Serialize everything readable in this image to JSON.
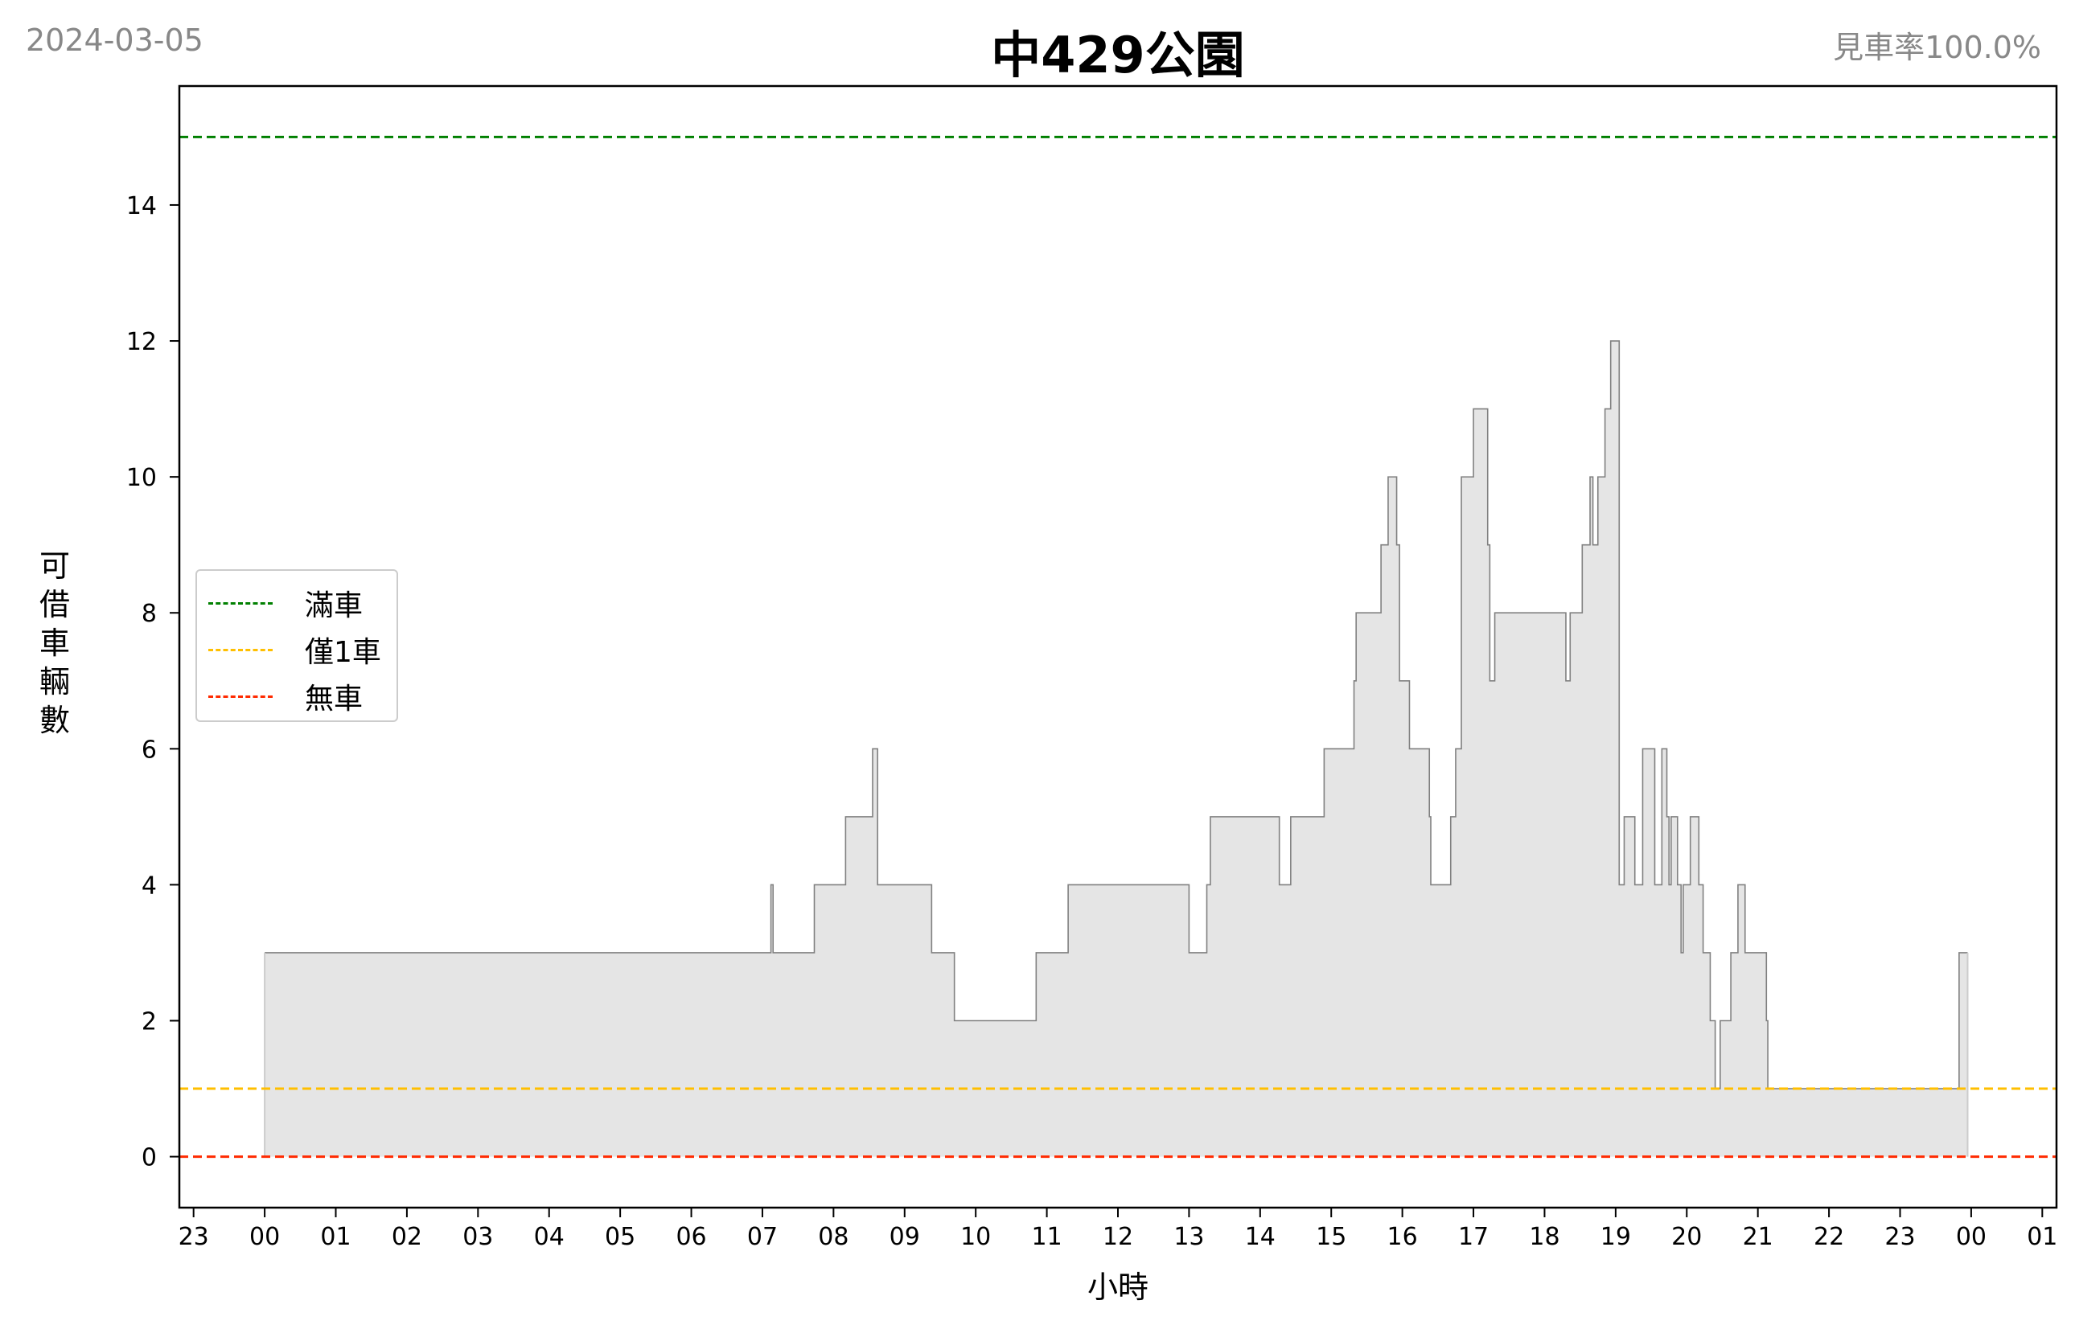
{
  "header": {
    "date": "2024-03-05",
    "title": "中429公園",
    "rate": "見車率100.0%"
  },
  "chart_data": {
    "type": "area",
    "step": true,
    "xlabel": "小時",
    "ylabel": "可借車輛數",
    "xlim": [
      -1.2,
      25.2
    ],
    "ylim": [
      -0.75,
      15.75
    ],
    "x_ticks": [
      -1,
      0,
      1,
      2,
      3,
      4,
      5,
      6,
      7,
      8,
      9,
      10,
      11,
      12,
      13,
      14,
      15,
      16,
      17,
      18,
      19,
      20,
      21,
      22,
      23,
      24,
      25
    ],
    "x_tick_labels": [
      "23",
      "00",
      "01",
      "02",
      "03",
      "04",
      "05",
      "06",
      "07",
      "08",
      "09",
      "10",
      "11",
      "12",
      "13",
      "14",
      "15",
      "16",
      "17",
      "18",
      "19",
      "20",
      "21",
      "22",
      "23",
      "00",
      "01"
    ],
    "y_ticks": [
      0,
      2,
      4,
      6,
      8,
      10,
      12,
      14
    ],
    "y_tick_labels": [
      "0",
      "2",
      "4",
      "6",
      "8",
      "10",
      "12",
      "14"
    ],
    "grid": false,
    "legend_position": "center-left",
    "reference_lines": [
      {
        "name": "滿車",
        "y": 15,
        "color": "#008000"
      },
      {
        "name": "僅1車",
        "y": 1,
        "color": "#ffbf00"
      },
      {
        "name": "無車",
        "y": 0,
        "color": "#ff2a00"
      }
    ],
    "fill_color": "#e5e5e5",
    "line_color": "#808080",
    "series": [
      {
        "x": [
          0.0,
          7.12,
          7.15,
          7.73,
          8.17,
          8.55,
          8.62,
          9.38,
          9.7,
          10.85,
          11.3,
          13.0,
          13.25,
          13.3,
          14.27,
          14.43,
          14.9,
          15.32,
          15.35,
          15.7,
          15.8,
          15.92,
          15.96,
          16.1,
          16.38,
          16.4,
          16.68,
          16.75,
          16.83,
          17.0,
          17.2,
          17.23,
          17.3,
          18.3,
          18.36,
          18.53,
          18.64,
          18.68,
          18.75,
          18.85,
          18.93,
          19.05,
          19.12,
          19.27,
          19.38,
          19.55,
          19.65,
          19.72,
          19.75,
          19.78,
          19.87,
          19.92,
          19.95,
          20.05,
          20.17,
          20.23,
          20.33,
          20.4,
          20.47,
          20.62,
          20.72,
          20.78,
          20.82,
          21.12,
          21.14,
          21.2,
          22.0,
          22.05,
          22.12,
          23.83,
          23.95
        ],
        "y": [
          3,
          4,
          3,
          4,
          5,
          6,
          4,
          3,
          2,
          3,
          4,
          3,
          4,
          5,
          4,
          5,
          6,
          7,
          8,
          9,
          10,
          9,
          7,
          6,
          5,
          4,
          5,
          6,
          10,
          11,
          9,
          7,
          8,
          7,
          8,
          9,
          10,
          9,
          10,
          11,
          12,
          4,
          5,
          4,
          6,
          4,
          6,
          5,
          4,
          5,
          4,
          3,
          4,
          5,
          4,
          3,
          2,
          1,
          2,
          3,
          4,
          4,
          3,
          2,
          1,
          1,
          1,
          1,
          1,
          3,
          3
        ],
        "x_end": 23.95
      }
    ]
  }
}
